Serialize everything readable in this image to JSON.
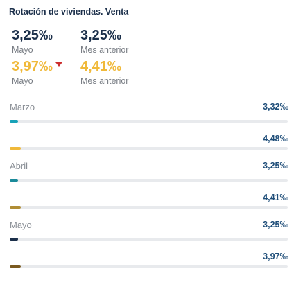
{
  "title": "Rotación de viviendas. Venta",
  "kpis": [
    {
      "value": "3,25‰",
      "label": "Mayo"
    },
    {
      "value": "3,25‰",
      "label": "Mes anterior"
    },
    {
      "value": "3,97‰",
      "label": "Mayo",
      "trend": "down"
    },
    {
      "value": "4,41‰",
      "label": "Mes anterior"
    }
  ],
  "months": [
    {
      "name": "Marzo",
      "bars": [
        {
          "value": "3,32‰",
          "fraction": 0.03,
          "color": "#17a2b8"
        },
        {
          "value": "4,48‰",
          "fraction": 0.04,
          "color": "#f0b93a"
        }
      ]
    },
    {
      "name": "Abril",
      "bars": [
        {
          "value": "3,25‰",
          "fraction": 0.03,
          "color": "#1a8a9a"
        },
        {
          "value": "4,41‰",
          "fraction": 0.04,
          "color": "#b08d35"
        }
      ]
    },
    {
      "name": "Mayo",
      "bars": [
        {
          "value": "3,25‰",
          "fraction": 0.03,
          "color": "#1b2f4a"
        },
        {
          "value": "3,97‰",
          "fraction": 0.04,
          "color": "#7a5a20"
        }
      ]
    }
  ],
  "colors": {
    "navy": "#1b2f4a",
    "gold": "#f0b93a",
    "down": "#cc2e2e"
  }
}
